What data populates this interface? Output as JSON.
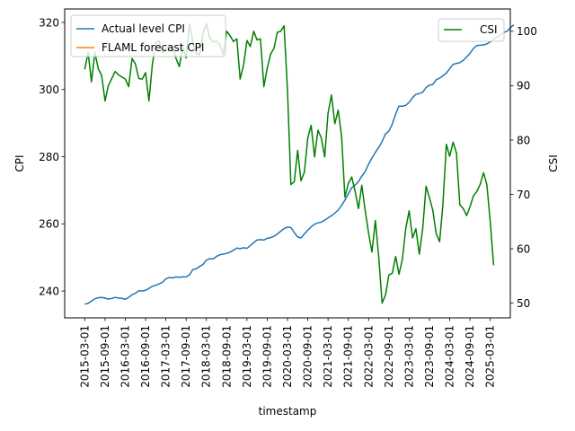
{
  "chart_data": {
    "type": "line",
    "xlabel": "timestamp",
    "ylabel_left": "CPI",
    "ylabel_right": "CSI",
    "x_tick_labels": [
      "2015-03-01",
      "2015-09-01",
      "2016-03-01",
      "2016-09-01",
      "2017-03-01",
      "2017-09-01",
      "2018-03-01",
      "2018-09-01",
      "2019-03-01",
      "2019-09-01",
      "2020-03-01",
      "2020-09-01",
      "2021-03-01",
      "2021-09-01",
      "2022-03-01",
      "2022-09-01",
      "2023-03-01",
      "2023-09-01",
      "2024-03-01",
      "2024-09-01",
      "2025-03-01"
    ],
    "x_start": "2015-03-01",
    "x_end": "2025-03-01",
    "ylim_left": [
      232,
      324
    ],
    "yticks_left": [
      240,
      260,
      280,
      300,
      320
    ],
    "ylim_right": [
      47.3,
      104.1
    ],
    "yticks_right": [
      50,
      60,
      70,
      80,
      90,
      100
    ],
    "grid": false,
    "legend_left": {
      "placement": "top-left",
      "entries": [
        "Actual level CPI",
        "FLAML forecast CPI"
      ]
    },
    "legend_right": {
      "placement": "top-right",
      "entries": [
        "CSI"
      ]
    },
    "series": [
      {
        "name": "Actual level CPI",
        "axis": "left",
        "color": "#1f77b4",
        "start": "2015-03-01",
        "step_months": 1,
        "values": [
          236.1,
          236.3,
          237.0,
          237.7,
          238.0,
          238.1,
          237.9,
          237.6,
          237.8,
          238.1,
          237.9,
          237.8,
          237.5,
          238.1,
          238.9,
          239.3,
          240.1,
          240.0,
          240.2,
          240.8,
          241.4,
          241.7,
          242.1,
          242.6,
          243.6,
          244.0,
          243.9,
          244.2,
          244.1,
          244.2,
          244.2,
          244.8,
          246.4,
          246.6,
          247.3,
          247.9,
          249.2,
          249.6,
          249.6,
          250.3,
          250.8,
          251.0,
          251.2,
          251.6,
          252.1,
          252.8,
          252.6,
          252.9,
          252.7,
          253.5,
          254.4,
          255.2,
          255.3,
          255.2,
          255.7,
          255.9,
          256.3,
          257.0,
          257.8,
          258.6,
          259.0,
          258.9,
          257.4,
          256.1,
          255.8,
          257.0,
          258.1,
          259.1,
          259.9,
          260.3,
          260.5,
          261.1,
          261.8,
          262.4,
          263.2,
          264.1,
          265.5,
          267.1,
          268.9,
          270.8,
          271.5,
          272.6,
          274.2,
          275.6,
          277.8,
          279.6,
          281.3,
          282.8,
          284.5,
          286.8,
          287.6,
          289.7,
          292.7,
          295.1,
          295.0,
          295.3,
          296.2,
          297.6,
          298.6,
          298.8,
          299.2,
          300.6,
          301.3,
          301.5,
          302.9,
          303.4,
          304.1,
          304.9,
          306.2,
          307.5,
          307.8,
          308.0,
          308.7,
          309.7,
          310.8,
          312.2,
          313.1,
          313.2,
          313.3,
          313.6,
          314.2,
          315.0,
          315.6,
          316.3,
          317.0,
          317.4,
          318.5,
          319.3
        ]
      },
      {
        "name": "FLAML forecast CPI",
        "axis": "left",
        "color": "#ff7f0e",
        "values": []
      },
      {
        "name": "CSI",
        "axis": "right",
        "color": "#008000",
        "start": "2015-03-01",
        "step_months": 1,
        "values": [
          93.0,
          96.1,
          90.7,
          96.1,
          93.1,
          91.9,
          87.2,
          90.0,
          91.3,
          92.6,
          92.0,
          91.6,
          91.2,
          89.8,
          95.0,
          94.0,
          91.3,
          91.2,
          92.4,
          87.2,
          93.8,
          97.9,
          98.2,
          96.1,
          96.9,
          97.0,
          97.1,
          95.0,
          93.5,
          97.1,
          95.1,
          101.4,
          98.0,
          95.9,
          95.7,
          99.7,
          101.4,
          98.8,
          98.0,
          98.2,
          97.5,
          95.7,
          100.0,
          99.2,
          98.1,
          98.6,
          91.2,
          93.8,
          98.3,
          97.2,
          100.0,
          98.4,
          98.6,
          89.8,
          93.2,
          95.8,
          96.9,
          99.8,
          100.0,
          101.0,
          89.1,
          71.8,
          72.3,
          78.1,
          72.5,
          74.1,
          80.4,
          82.7,
          76.9,
          81.8,
          80.4,
          76.9,
          84.9,
          88.3,
          83.0,
          85.5,
          80.7,
          69.5,
          72.0,
          73.2,
          70.6,
          67.4,
          71.7,
          67.0,
          62.8,
          59.4,
          65.2,
          58.4,
          50.0,
          51.5,
          55.2,
          55.5,
          58.6,
          55.3,
          58.1,
          63.7,
          67.0,
          62.0,
          63.7,
          59.0,
          63.7,
          71.5,
          69.4,
          67.1,
          62.8,
          61.3,
          68.2,
          79.2,
          77.0,
          79.6,
          77.6,
          68.1,
          67.4,
          66.1,
          67.7,
          69.7,
          70.5,
          71.8,
          74.0,
          71.8,
          64.9,
          57.0
        ]
      }
    ]
  }
}
